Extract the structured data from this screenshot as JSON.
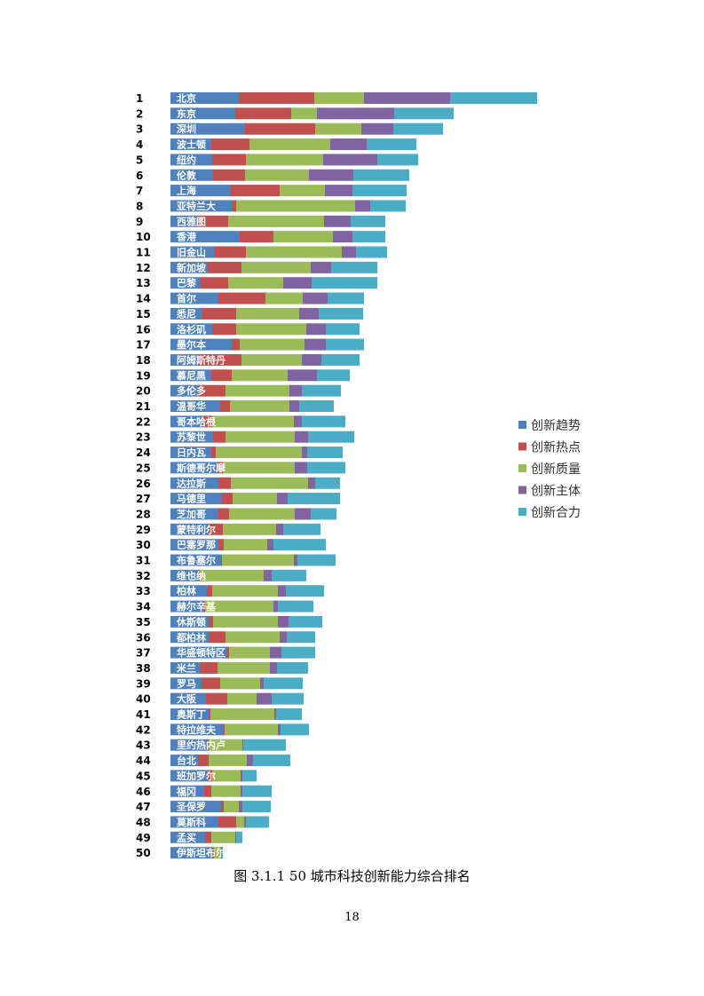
{
  "chart_data": {
    "type": "bar",
    "orientation": "horizontal-stacked",
    "legend_position": "right",
    "colors": [
      "#4f81bd",
      "#c0504d",
      "#9bbb59",
      "#8064a2",
      "#4bacc6"
    ],
    "legend": [
      "创新趋势",
      "创新热点",
      "创新质量",
      "创新主体",
      "创新合力"
    ],
    "ranks": [
      "1",
      "2",
      "3",
      "4",
      "5",
      "6",
      "7",
      "8",
      "9",
      "10",
      "11",
      "12",
      "13",
      "14",
      "15",
      "16",
      "17",
      "18",
      "19",
      "20",
      "21",
      "22",
      "23",
      "24",
      "25",
      "26",
      "27",
      "28",
      "29",
      "30",
      "31",
      "32",
      "33",
      "34",
      "35",
      "36",
      "37",
      "38",
      "39",
      "40",
      "41",
      "42",
      "43",
      "44",
      "45",
      "46",
      "47",
      "48",
      "49",
      "50"
    ],
    "categories": [
      "北京",
      "东京",
      "深圳",
      "波士顿",
      "纽约",
      "伦敦",
      "上海",
      "亚特兰大",
      "西雅图",
      "香港",
      "旧金山",
      "新加坡",
      "巴黎",
      "首尔",
      "悉尼",
      "洛杉矶",
      "墨尔本",
      "阿姆斯特丹",
      "慕尼黑",
      "多伦多",
      "温哥华",
      "哥本哈根",
      "苏黎世",
      "日内瓦",
      "斯德哥尔摩",
      "达拉斯",
      "马德里",
      "芝加哥",
      "蒙特利尔",
      "巴塞罗那",
      "布鲁塞尔",
      "维也纳",
      "柏林",
      "赫尔辛基",
      "休斯顿",
      "都柏林",
      "华盛顿特区",
      "米兰",
      "罗马",
      "大阪",
      "奥斯丁",
      "特拉维夫",
      "里约热内卢",
      "台北",
      "班加罗尔",
      "福冈",
      "圣保罗",
      "莫斯科",
      "孟买",
      "伊斯坦布尔"
    ],
    "series": [
      {
        "name": "创新趋势",
        "values": [
          15.4,
          14.6,
          16.8,
          9.2,
          9.4,
          9.6,
          13.6,
          13.8,
          6.0,
          15.6,
          10.0,
          8.4,
          6.8,
          10.8,
          7.2,
          9.4,
          13.8,
          6.4,
          9.2,
          6.2,
          11.2,
          7.4,
          9.6,
          9.2,
          10.6,
          10.8,
          11.6,
          10.8,
          8.6,
          10.8,
          11.4,
          6.4,
          8.2,
          7.6,
          8.6,
          8.6,
          12.6,
          6.6,
          7.0,
          8.0,
          8.6,
          12.0,
          8.2,
          6.2,
          8.4,
          7.6,
          11.4,
          10.8,
          7.8,
          9.4
        ]
      },
      {
        "name": "创新热点",
        "values": [
          17.0,
          12.6,
          15.8,
          8.6,
          7.6,
          7.2,
          11.0,
          1.0,
          7.0,
          7.6,
          7.0,
          7.6,
          6.2,
          10.6,
          7.6,
          5.4,
          1.8,
          9.6,
          4.6,
          6.2,
          2.2,
          2.0,
          2.8,
          1.0,
          1.2,
          2.8,
          2.4,
          2.4,
          3.2,
          1.2,
          0.2,
          0.2,
          1.2,
          0.2,
          1.0,
          3.8,
          0.6,
          4.0,
          4.2,
          4.8,
          0.4,
          0.2,
          0.4,
          2.4,
          1.0,
          1.6,
          0.6,
          4.0,
          1.4,
          0.4
        ]
      },
      {
        "name": "创新质量",
        "values": [
          11.2,
          5.8,
          10.4,
          18.2,
          17.4,
          14.4,
          10.2,
          26.8,
          21.6,
          13.4,
          21.6,
          15.6,
          12.4,
          8.4,
          14.2,
          15.8,
          14.6,
          13.6,
          12.6,
          14.4,
          13.4,
          18.4,
          15.6,
          19.4,
          16.2,
          17.4,
          10.0,
          14.8,
          12.0,
          9.8,
          16.2,
          14.4,
          14.8,
          15.4,
          14.6,
          12.2,
          9.2,
          11.8,
          9.0,
          6.6,
          14.4,
          12.0,
          7.6,
          8.6,
          6.4,
          6.6,
          3.4,
          1.8,
          5.4,
          1.6
        ]
      },
      {
        "name": "创新主体",
        "values": [
          19.4,
          17.4,
          7.2,
          8.2,
          12.2,
          10.0,
          6.2,
          3.4,
          6.0,
          4.4,
          3.2,
          4.6,
          6.4,
          5.6,
          4.4,
          4.4,
          4.8,
          4.4,
          6.6,
          2.8,
          2.2,
          1.8,
          3.0,
          1.2,
          2.8,
          1.6,
          2.4,
          3.6,
          1.6,
          1.4,
          0.8,
          1.8,
          1.8,
          1.0,
          2.4,
          1.6,
          2.6,
          1.6,
          0.8,
          3.4,
          0.4,
          0.6,
          0.2,
          1.4,
          0.4,
          0.4,
          0.8,
          0.4,
          0.2,
          0.2
        ]
      },
      {
        "name": "创新合力",
        "values": [
          19.6,
          13.4,
          11.2,
          11.2,
          9.2,
          12.6,
          12.2,
          8.0,
          7.8,
          7.4,
          7.0,
          10.4,
          14.8,
          8.2,
          10.0,
          7.6,
          8.6,
          8.6,
          7.4,
          8.8,
          7.8,
          9.8,
          10.4,
          8.0,
          8.6,
          5.6,
          11.8,
          5.8,
          8.4,
          11.8,
          8.6,
          7.8,
          8.6,
          8.0,
          7.6,
          6.4,
          7.6,
          7.0,
          8.8,
          7.2,
          5.8,
          6.4,
          9.6,
          8.4,
          3.2,
          6.6,
          6.4,
          5.2,
          1.4,
          0.2
        ]
      }
    ],
    "xlim": [
      0,
      100
    ],
    "title": "图 3.1.1 50 城市科技创新能力综合排名"
  },
  "page": {
    "caption": "图 3.1.1 50 城市科技创新能力综合排名",
    "number": "18"
  }
}
